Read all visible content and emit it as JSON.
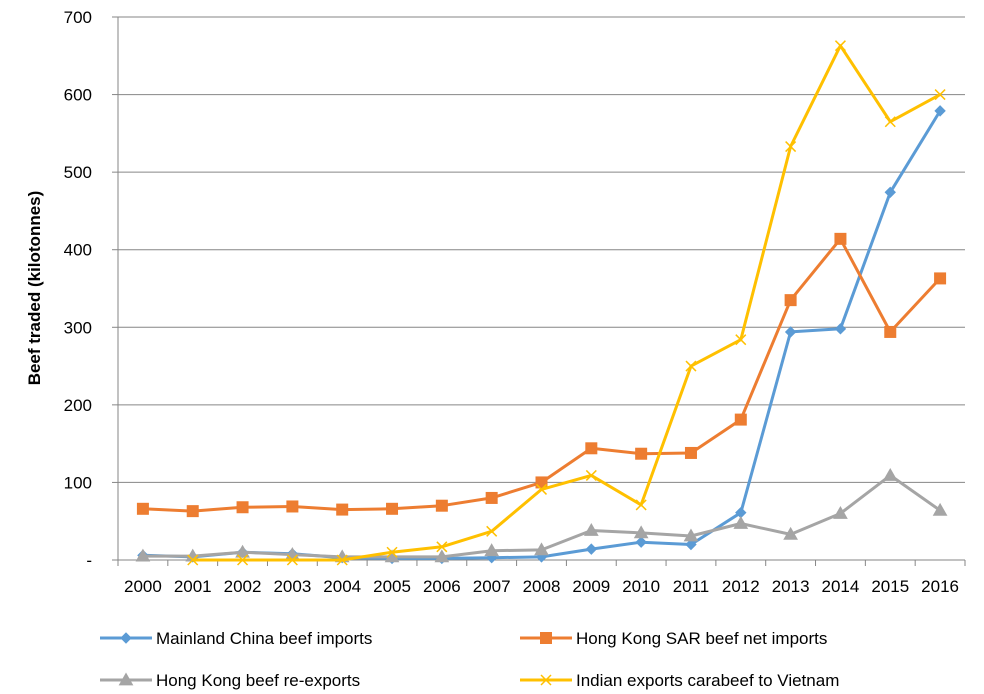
{
  "chart_data": {
    "type": "line",
    "title": "",
    "xlabel": "",
    "ylabel": "Beef traded (kilotonnes)",
    "categories": [
      "2000",
      "2001",
      "2002",
      "2003",
      "2004",
      "2005",
      "2006",
      "2007",
      "2008",
      "2009",
      "2010",
      "2011",
      "2012",
      "2013",
      "2014",
      "2015",
      "2016"
    ],
    "ylim": [
      0,
      700
    ],
    "yticks": [
      0,
      100,
      200,
      300,
      400,
      500,
      600,
      700
    ],
    "ytick_labels": [
      "-",
      "100",
      "200",
      "300",
      "400",
      "500",
      "600",
      "700"
    ],
    "grid": true,
    "legend_position": "bottom",
    "series": [
      {
        "name": "Mainland China beef imports",
        "color": "#5B9BD5",
        "marker": "diamond",
        "values": [
          6,
          4,
          10,
          8,
          3,
          2,
          2,
          3,
          4,
          14,
          23,
          20,
          61,
          294,
          298,
          474,
          579
        ]
      },
      {
        "name": "Hong Kong SAR beef net imports",
        "color": "#ED7D31",
        "marker": "square",
        "values": [
          66,
          63,
          68,
          69,
          65,
          66,
          70,
          80,
          100,
          144,
          137,
          138,
          181,
          335,
          414,
          294,
          363
        ]
      },
      {
        "name": "Hong Kong beef re-exports",
        "color": "#A5A5A5",
        "marker": "triangle",
        "values": [
          5,
          5,
          10,
          7,
          4,
          4,
          4,
          12,
          13,
          38,
          35,
          31,
          47,
          33,
          60,
          109,
          64
        ]
      },
      {
        "name": "Indian exports carabeef to Vietnam",
        "color": "#FFC000",
        "marker": "x",
        "values": [
          null,
          0,
          0,
          0,
          0,
          10,
          17,
          37,
          91,
          109,
          71,
          250,
          284,
          533,
          663,
          565,
          600
        ]
      }
    ]
  }
}
